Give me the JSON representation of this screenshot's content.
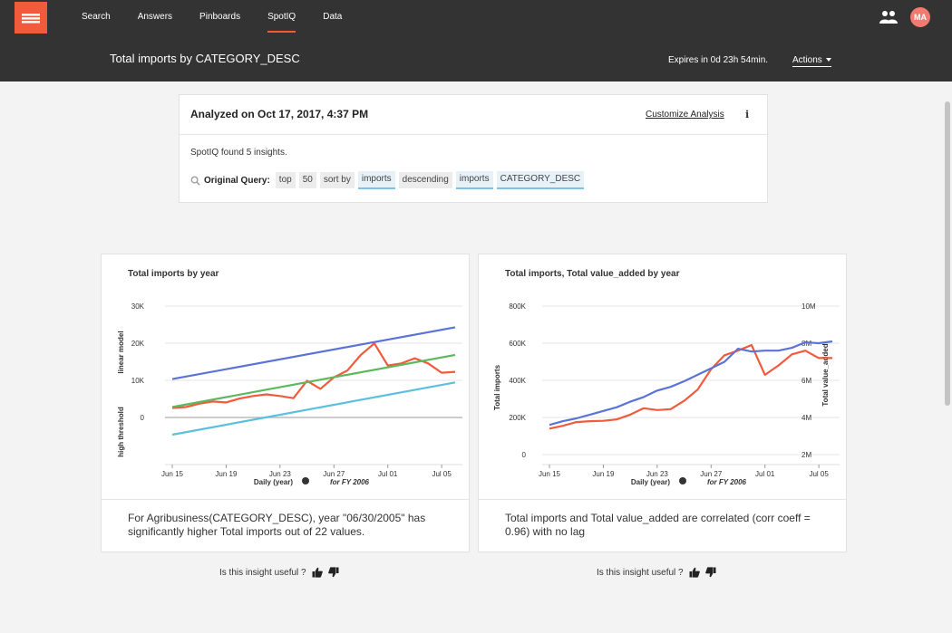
{
  "nav": {
    "items": [
      "Search",
      "Answers",
      "Pinboards",
      "SpotIQ",
      "Data"
    ],
    "active": "SpotIQ",
    "avatar_initials": "MA"
  },
  "header": {
    "title": "Total imports by CATEGORY_DESC",
    "expires": "Expires in 0d 23h 54min.",
    "actions_label": "Actions"
  },
  "analysis": {
    "analyzed_on": "Analyzed on Oct 17, 2017, 4:37 PM",
    "customize_label": "Customize Analysis",
    "found": "SpotIQ found 5 insights.",
    "query_label": "Original Query:",
    "tokens": [
      {
        "text": "top",
        "column": false
      },
      {
        "text": "50",
        "column": false
      },
      {
        "text": "sort by",
        "column": false
      },
      {
        "text": "imports",
        "column": true
      },
      {
        "text": "descending",
        "column": false
      },
      {
        "text": "imports",
        "column": true
      },
      {
        "text": "CATEGORY_DESC",
        "column": true
      }
    ]
  },
  "insights": [
    {
      "description": "For Agribusiness(CATEGORY_DESC), year \"06/30/2005\" has significantly higher Total imports out of 22 values.",
      "useful_label": "Is this insight useful ?"
    },
    {
      "description": "Total imports and Total value_added are correlated (corr coeff = 0.96) with no lag",
      "useful_label": "Is this insight useful ?"
    }
  ],
  "chart_data": [
    {
      "type": "line",
      "title": "Total imports by year",
      "xlabel": "Daily (year)",
      "xlabel_note": "for FY 2006",
      "ylabel": "linear model",
      "ylabel2": "high threshold",
      "x_ticks": [
        "Jun 15",
        "Jun 19",
        "Jun 23",
        "Jun 27",
        "Jul 01",
        "Jul 05"
      ],
      "y_ticks": [
        "30K",
        "20K",
        "10K",
        "0"
      ],
      "ylim": [
        -5000,
        30000
      ],
      "grid": true,
      "series": [
        {
          "color": "#f25a3c",
          "x": [
            0,
            1,
            2,
            3,
            4,
            5,
            6,
            7,
            8,
            9,
            10,
            11,
            12,
            13,
            14,
            15,
            16,
            17,
            18,
            19,
            20,
            21
          ],
          "values": [
            6000,
            6200,
            7000,
            7500,
            7300,
            8200,
            8800,
            9200,
            8800,
            8300,
            12400,
            10500,
            13200,
            14800,
            18500,
            21200,
            16000,
            16500,
            17700,
            16500,
            14300,
            14500
          ]
        },
        {
          "color": "#5b73d6",
          "x": [
            0,
            21
          ],
          "values": [
            12800,
            25000
          ]
        },
        {
          "color": "#5cb85c",
          "x": [
            0,
            21
          ],
          "values": [
            6200,
            18500
          ]
        },
        {
          "color": "#5bc0de",
          "x": [
            0,
            21
          ],
          "values": [
            -300,
            12000
          ]
        }
      ]
    },
    {
      "type": "line",
      "title": "Total imports, Total value_added by year",
      "xlabel": "Daily (year)",
      "xlabel_note": "for FY 2006",
      "ylabel": "Total imports",
      "ylabel_right": "Total value_added",
      "x_ticks": [
        "Jun 15",
        "Jun 19",
        "Jun 23",
        "Jun 27",
        "Jul 01",
        "Jul 05"
      ],
      "y_ticks": [
        "800K",
        "600K",
        "400K",
        "200K",
        "0"
      ],
      "y2_ticks": [
        "10M",
        "8M",
        "6M",
        "4M",
        "2M"
      ],
      "ylim": [
        0,
        800000
      ],
      "y2lim": [
        2000000,
        10000000
      ],
      "grid": true,
      "series": [
        {
          "name": "Total imports",
          "color": "#f25a3c",
          "axis": "left",
          "x": [
            0,
            1,
            2,
            3,
            4,
            5,
            6,
            7,
            8,
            9,
            10,
            11,
            12,
            13,
            14,
            15,
            16,
            17,
            18,
            19,
            20,
            21
          ],
          "values": [
            140000,
            155000,
            175000,
            180000,
            182000,
            190000,
            215000,
            250000,
            240000,
            245000,
            290000,
            350000,
            460000,
            535000,
            560000,
            590000,
            430000,
            480000,
            540000,
            560000,
            520000,
            520000
          ]
        },
        {
          "name": "Total value_added",
          "color": "#5b73d6",
          "axis": "right",
          "x": [
            0,
            1,
            2,
            3,
            4,
            5,
            6,
            7,
            8,
            9,
            10,
            11,
            12,
            13,
            14,
            15,
            16,
            17,
            18,
            19,
            20,
            21
          ],
          "values": [
            3600000,
            3800000,
            3950000,
            4150000,
            4350000,
            4550000,
            4850000,
            5100000,
            5450000,
            5650000,
            5950000,
            6300000,
            6650000,
            7000000,
            7700000,
            7550000,
            7600000,
            7600000,
            7750000,
            8050000,
            8000000,
            8100000
          ]
        }
      ]
    }
  ]
}
